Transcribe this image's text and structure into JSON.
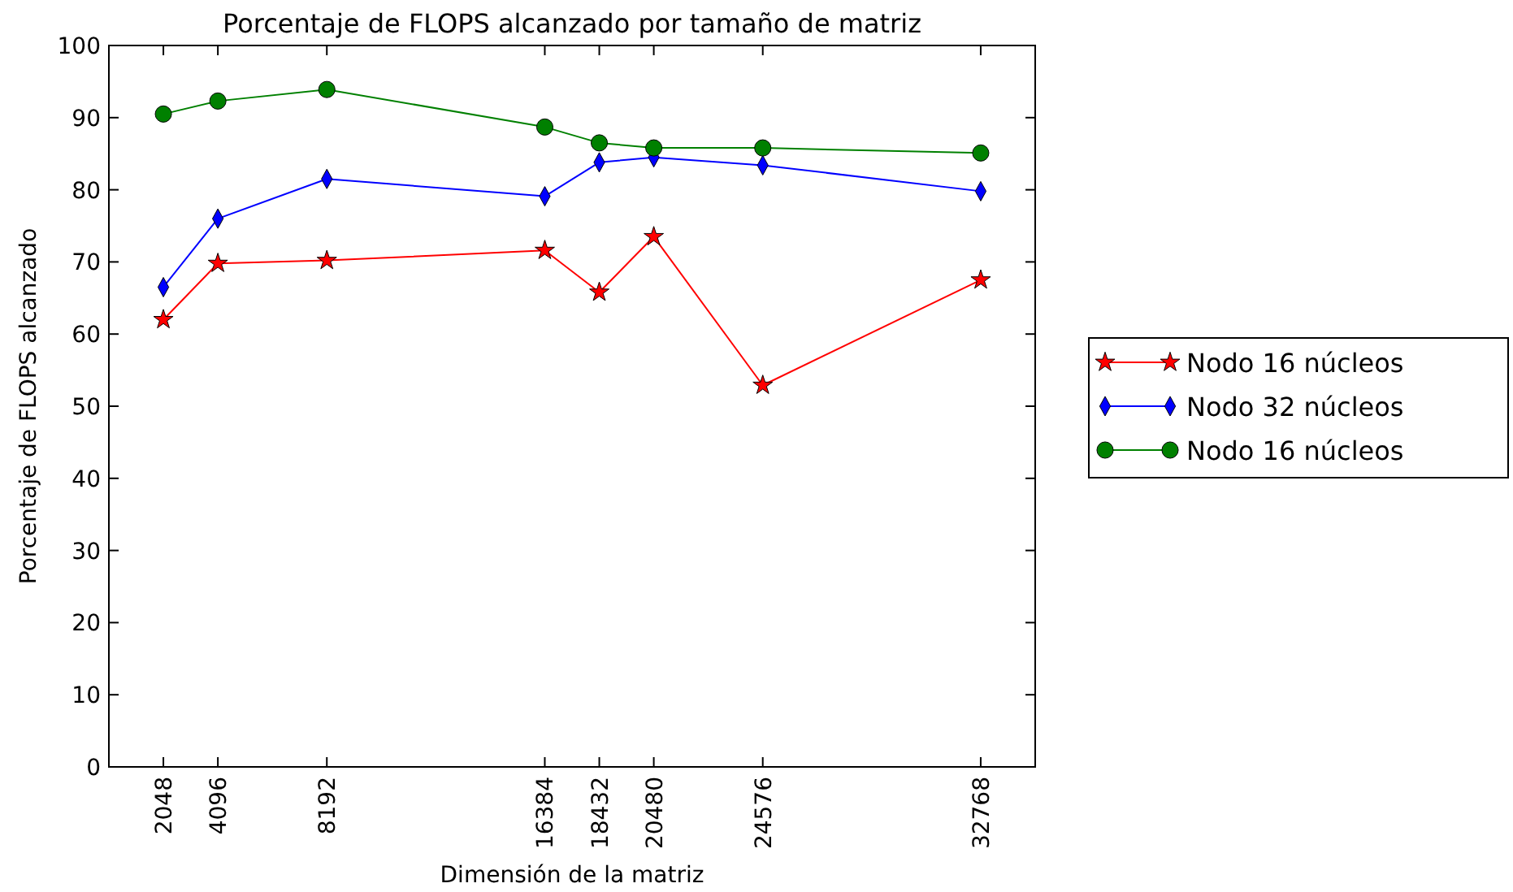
{
  "chart_data": {
    "type": "line",
    "title": "Porcentaje de FLOPS alcanzado por tamaño de matriz",
    "xlabel": "Dimensión de la matriz",
    "ylabel": "Porcentaje de FLOPS alcanzado",
    "x": [
      2048,
      4096,
      8192,
      16384,
      18432,
      20480,
      24576,
      32768
    ],
    "xlim": [
      0,
      34816
    ],
    "xticks": [
      2048,
      4096,
      8192,
      16384,
      18432,
      20480,
      24576,
      32768
    ],
    "ylim": [
      0,
      100
    ],
    "yticks": [
      0,
      10,
      20,
      30,
      40,
      50,
      60,
      70,
      80,
      90,
      100
    ],
    "grid": false,
    "legend": "right",
    "line_style": "solid",
    "series": [
      {
        "name": "Nodo 16 núcleos",
        "color": "#ff0000",
        "marker": "star",
        "values": [
          62,
          69.8,
          70.2,
          71.6,
          65.8,
          73.5,
          52.9,
          67.5
        ]
      },
      {
        "name": "Nodo 32 núcleos",
        "color": "#0000ff",
        "marker": "diamond",
        "values": [
          66.5,
          76,
          81.5,
          79.1,
          83.8,
          84.5,
          83.4,
          79.8
        ]
      },
      {
        "name": "Nodo 16 núcleos",
        "color": "#008000",
        "marker": "circle",
        "values": [
          90.5,
          92.3,
          93.9,
          88.7,
          86.5,
          85.8,
          85.8,
          85.1
        ]
      }
    ]
  }
}
